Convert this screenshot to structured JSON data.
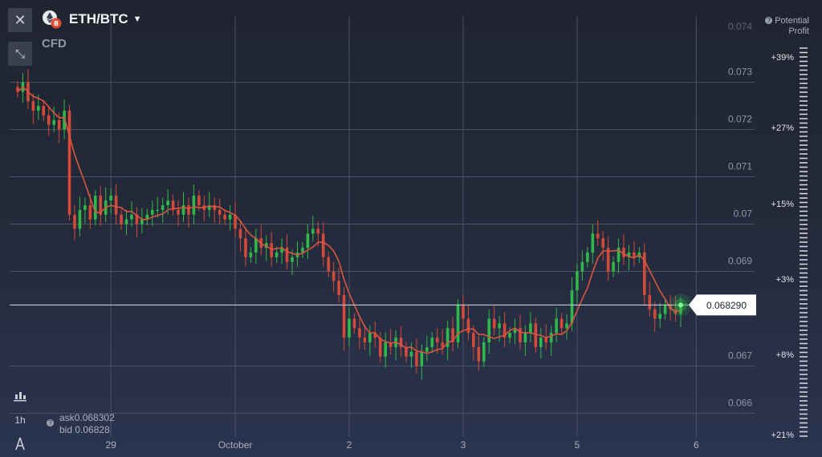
{
  "header": {
    "close_icon": "close-icon",
    "shrink_icon": "shrink-icon",
    "asset_title": "ETH/BTC",
    "asset_type": "CFD",
    "potential_title": "Potential",
    "potential_sub": "Profit"
  },
  "quote": {
    "ask_label": "ask",
    "ask_value": "0.068302",
    "bid_label": "bid",
    "bid_value": "0.06828"
  },
  "tools": {
    "chart_type_icon": "candlestick-icon",
    "timeframe": "1h",
    "indicators_icon": "indicator-icon"
  },
  "colors": {
    "up": "#2fb94a",
    "down": "#d24a3a",
    "ma": "#d8553f",
    "current_price_box": "#ffffff"
  },
  "chart_data": {
    "type": "candlestick",
    "x_ticks": [
      "29",
      "October",
      "2",
      "3",
      "5",
      "6"
    ],
    "y_ticks": [
      "0.073",
      "0.072",
      "0.071",
      "0.07",
      "0.069",
      "0.067",
      "0.066"
    ],
    "y_top_partial": "0.074",
    "ylim": [
      0.0655,
      0.0744
    ],
    "current_price": "0.068290",
    "current_price_value": 0.06829,
    "profit_scale": [
      "+39%",
      "+27%",
      "+15%",
      "+3%",
      "+8%",
      "+21%"
    ],
    "moving_average": "red line",
    "close_series": [
      0.0728,
      0.073,
      0.0726,
      0.0724,
      0.0725,
      0.0723,
      0.0721,
      0.0722,
      0.072,
      0.0724,
      0.0702,
      0.0699,
      0.0703,
      0.0704,
      0.0701,
      0.0706,
      0.0702,
      0.0705,
      0.0706,
      0.0702,
      0.07,
      0.0701,
      0.0702,
      0.07,
      0.0701,
      0.0702,
      0.0703,
      0.0703,
      0.0704,
      0.0705,
      0.0703,
      0.0702,
      0.0704,
      0.0702,
      0.0706,
      0.0704,
      0.0703,
      0.0704,
      0.0703,
      0.0702,
      0.0701,
      0.0702,
      0.0699,
      0.0697,
      0.0693,
      0.0694,
      0.0697,
      0.0695,
      0.0696,
      0.0693,
      0.0694,
      0.0695,
      0.0692,
      0.0693,
      0.0694,
      0.0695,
      0.0698,
      0.0699,
      0.0698,
      0.0693,
      0.069,
      0.0688,
      0.0685,
      0.0676,
      0.068,
      0.0678,
      0.0676,
      0.0675,
      0.0677,
      0.0676,
      0.0672,
      0.0675,
      0.0674,
      0.0676,
      0.0674,
      0.0672,
      0.0673,
      0.067,
      0.0673,
      0.0674,
      0.0676,
      0.0675,
      0.0674,
      0.0678,
      0.0675,
      0.0683,
      0.068,
      0.0677,
      0.0674,
      0.0671,
      0.0675,
      0.068,
      0.0678,
      0.0679,
      0.0676,
      0.0677,
      0.0678,
      0.0675,
      0.0677,
      0.0679,
      0.0674,
      0.0676,
      0.0675,
      0.0677,
      0.068,
      0.0678,
      0.0679,
      0.0686,
      0.069,
      0.0692,
      0.0694,
      0.0698,
      0.0697,
      0.0695,
      0.069,
      0.0692,
      0.0695,
      0.0693,
      0.0694,
      0.0693,
      0.0694,
      0.0685,
      0.0682,
      0.068,
      0.0681,
      0.0683,
      0.0682,
      0.0681,
      0.0683
    ]
  }
}
